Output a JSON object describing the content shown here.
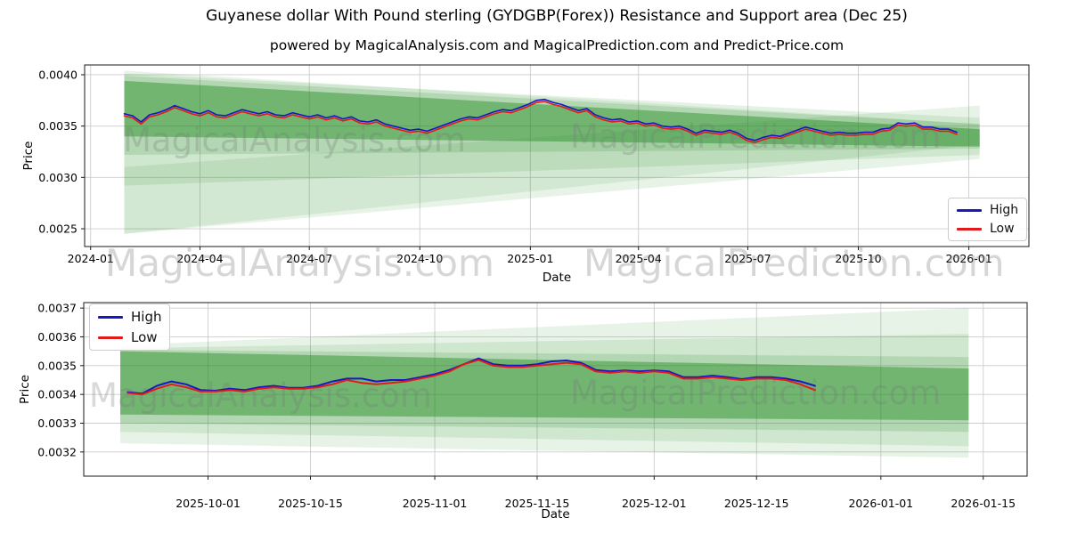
{
  "figure": {
    "title": "Guyanese dollar With Pound sterling (GYDGBP(Forex)) Resistance and Support area (Dec 25)",
    "subtitle": "powered by MagicalAnalysis.com and MagicalPrediction.com and Predict-Price.com",
    "watermarks": {
      "analysis": "MagicalAnalysis.com",
      "prediction": "MagicalPrediction.com"
    },
    "colors": {
      "high_line": "#1717c4",
      "low_line": "#e11b1b",
      "band_green": "#228B22",
      "grid": "#cccccc",
      "spine": "#1a1a1a",
      "watermark": "#777777"
    }
  },
  "chart_data": [
    {
      "type": "line",
      "title": "",
      "xlabel": "Date",
      "ylabel": "Price",
      "grid": true,
      "xlim": [
        "2023-12-27",
        "2026-02-20"
      ],
      "ylim": [
        0.002327,
        0.004095
      ],
      "x_ticks": [
        {
          "date": "2024-01-01",
          "label": "2024-01"
        },
        {
          "date": "2024-04-01",
          "label": "2024-04"
        },
        {
          "date": "2024-07-01",
          "label": "2024-07"
        },
        {
          "date": "2024-10-01",
          "label": "2024-10"
        },
        {
          "date": "2025-01-01",
          "label": "2025-01"
        },
        {
          "date": "2025-04-01",
          "label": "2025-04"
        },
        {
          "date": "2025-07-01",
          "label": "2025-07"
        },
        {
          "date": "2025-10-01",
          "label": "2025-10"
        },
        {
          "date": "2026-01-01",
          "label": "2026-01"
        }
      ],
      "y_ticks": [
        0.0025,
        0.003,
        0.0035,
        0.004
      ],
      "legend": {
        "position": "lower right",
        "entries": [
          {
            "label": "High",
            "color": "#1717c4"
          },
          {
            "label": "Low",
            "color": "#e11b1b"
          }
        ]
      },
      "unit_scale": 1e-05,
      "series_start": "2024-01-29",
      "series_step_days": 7,
      "series": [
        {
          "name": "High",
          "color": "#1717c4",
          "values": [
            362,
            360,
            354,
            361,
            363,
            366,
            370,
            367,
            364,
            362,
            365,
            361,
            360,
            363,
            366,
            364,
            362,
            364,
            361,
            360,
            363,
            361,
            359,
            361,
            358,
            360,
            357,
            359,
            355,
            354,
            356,
            352,
            350,
            348,
            346,
            347,
            345,
            348,
            351,
            354,
            357,
            359,
            358,
            361,
            364,
            366,
            365,
            368,
            371,
            375,
            376,
            373,
            371,
            368,
            365,
            367,
            361,
            358,
            356,
            357,
            354,
            355,
            352,
            353,
            350,
            349,
            350,
            347,
            343,
            346,
            345,
            344,
            346,
            343,
            338,
            336,
            339,
            341,
            340,
            343,
            346,
            349,
            347,
            345,
            343,
            344,
            343,
            343,
            344,
            344,
            347,
            348,
            353,
            352,
            353,
            349,
            349,
            347,
            347,
            344
          ]
        },
        {
          "name": "Low",
          "color": "#e11b1b",
          "values": [
            360,
            358,
            352,
            359,
            361,
            364,
            368,
            365,
            362,
            360,
            363,
            359,
            358,
            361,
            364,
            362,
            360,
            362,
            359,
            358,
            361,
            359,
            357,
            359,
            356,
            358,
            355,
            357,
            353,
            352,
            354,
            350,
            348,
            346,
            344,
            345,
            343,
            346,
            349,
            352,
            355,
            357,
            356,
            359,
            362,
            364,
            363,
            366,
            369,
            373,
            374,
            371,
            369,
            366,
            363,
            365,
            359,
            356,
            354,
            355,
            352,
            353,
            350,
            351,
            348,
            347,
            348,
            345,
            341,
            344,
            343,
            342,
            344,
            341,
            336,
            334,
            337,
            339,
            338,
            341,
            344,
            347,
            345,
            343,
            341,
            342,
            341,
            341,
            342,
            342,
            345,
            346,
            351,
            350,
            351,
            347,
            347,
            345,
            345,
            342
          ]
        }
      ],
      "bands_color": "#228B22",
      "bands_start": "2024-01-29",
      "bands_end": "2026-01-10",
      "bands": [
        {
          "name": "outer-resistance-support",
          "top": [
            0.00404,
            0.00352
          ],
          "bottom": [
            0.00245,
            0.00318
          ],
          "opacity": 0.1
        },
        {
          "name": "wide-channel",
          "top": [
            0.00401,
            0.00358
          ],
          "bottom": [
            0.00292,
            0.00322
          ],
          "opacity": 0.12
        },
        {
          "name": "rising-support",
          "top": [
            0.0031,
            0.0037
          ],
          "bottom": [
            0.00245,
            0.00332
          ],
          "opacity": 0.1
        },
        {
          "name": "mid-channel",
          "top": [
            0.00399,
            0.00352
          ],
          "bottom": [
            0.00322,
            0.00328
          ],
          "opacity": 0.16
        },
        {
          "name": "core-channel",
          "top": [
            0.00394,
            0.00347
          ],
          "bottom": [
            0.0034,
            0.0033
          ],
          "opacity": 0.45
        }
      ]
    },
    {
      "type": "line",
      "title": "",
      "xlabel": "Date",
      "ylabel": "Price",
      "grid": true,
      "xlim": [
        "2025-09-14",
        "2026-01-21"
      ],
      "ylim": [
        0.003116,
        0.003719
      ],
      "x_ticks": [
        {
          "date": "2025-10-01",
          "label": "2025-10-01"
        },
        {
          "date": "2025-10-15",
          "label": "2025-10-15"
        },
        {
          "date": "2025-11-01",
          "label": "2025-11-01"
        },
        {
          "date": "2025-11-15",
          "label": "2025-11-15"
        },
        {
          "date": "2025-12-01",
          "label": "2025-12-01"
        },
        {
          "date": "2025-12-15",
          "label": "2025-12-15"
        },
        {
          "date": "2026-01-01",
          "label": "2026-01-01"
        },
        {
          "date": "2026-01-15",
          "label": "2026-01-15"
        }
      ],
      "y_ticks": [
        0.0032,
        0.0033,
        0.0034,
        0.0035,
        0.0036,
        0.0037
      ],
      "legend": {
        "position": "upper left",
        "entries": [
          {
            "label": "High",
            "color": "#1717c4"
          },
          {
            "label": "Low",
            "color": "#e11b1b"
          }
        ]
      },
      "unit_scale": 1e-05,
      "series_start": "2025-09-20",
      "series_step_days": 2,
      "series": [
        {
          "name": "High",
          "color": "#1717c4",
          "values": [
            340.8,
            340.3,
            343,
            344.5,
            343.5,
            341.5,
            341.3,
            342,
            341.5,
            342.5,
            343,
            342.3,
            342.3,
            343,
            344.5,
            345.5,
            345.5,
            344.5,
            345,
            345,
            346,
            347,
            348.5,
            350.5,
            352.5,
            350.5,
            350,
            350,
            350.5,
            351.5,
            351.8,
            351,
            348.5,
            348,
            348.3,
            348,
            348.3,
            348,
            346,
            346,
            346.5,
            346,
            345.3,
            346,
            346,
            345.5,
            344.5,
            343
          ]
        },
        {
          "name": "Low",
          "color": "#e11b1b",
          "values": [
            340.5,
            340,
            342,
            343.5,
            342.5,
            341,
            341,
            341.5,
            341,
            342,
            342.5,
            342,
            342,
            342.5,
            343.5,
            345,
            344,
            343.5,
            344,
            344.5,
            345.5,
            346.5,
            348,
            350.5,
            352,
            350,
            349.5,
            349.5,
            350,
            350.5,
            351,
            350.5,
            348,
            347.5,
            348,
            347.5,
            348,
            347.5,
            345.5,
            345.5,
            346,
            345.5,
            345,
            345.5,
            345.5,
            345,
            343.5,
            341.5
          ]
        }
      ],
      "bands_color": "#228B22",
      "bands_start": "2025-09-19",
      "bands_end": "2026-01-13",
      "bands": [
        {
          "name": "outer-resistance-support",
          "top": [
            0.00357,
            0.0037
          ],
          "bottom": [
            0.00323,
            0.00318
          ],
          "opacity": 0.1
        },
        {
          "name": "wide-channel",
          "top": [
            0.00356,
            0.00361
          ],
          "bottom": [
            0.00327,
            0.00322
          ],
          "opacity": 0.12
        },
        {
          "name": "mid-channel",
          "top": [
            0.003555,
            0.00353
          ],
          "bottom": [
            0.0033,
            0.00327
          ],
          "opacity": 0.16
        },
        {
          "name": "core-channel",
          "top": [
            0.00355,
            0.00349
          ],
          "bottom": [
            0.00333,
            0.00331
          ],
          "opacity": 0.45
        }
      ]
    }
  ]
}
